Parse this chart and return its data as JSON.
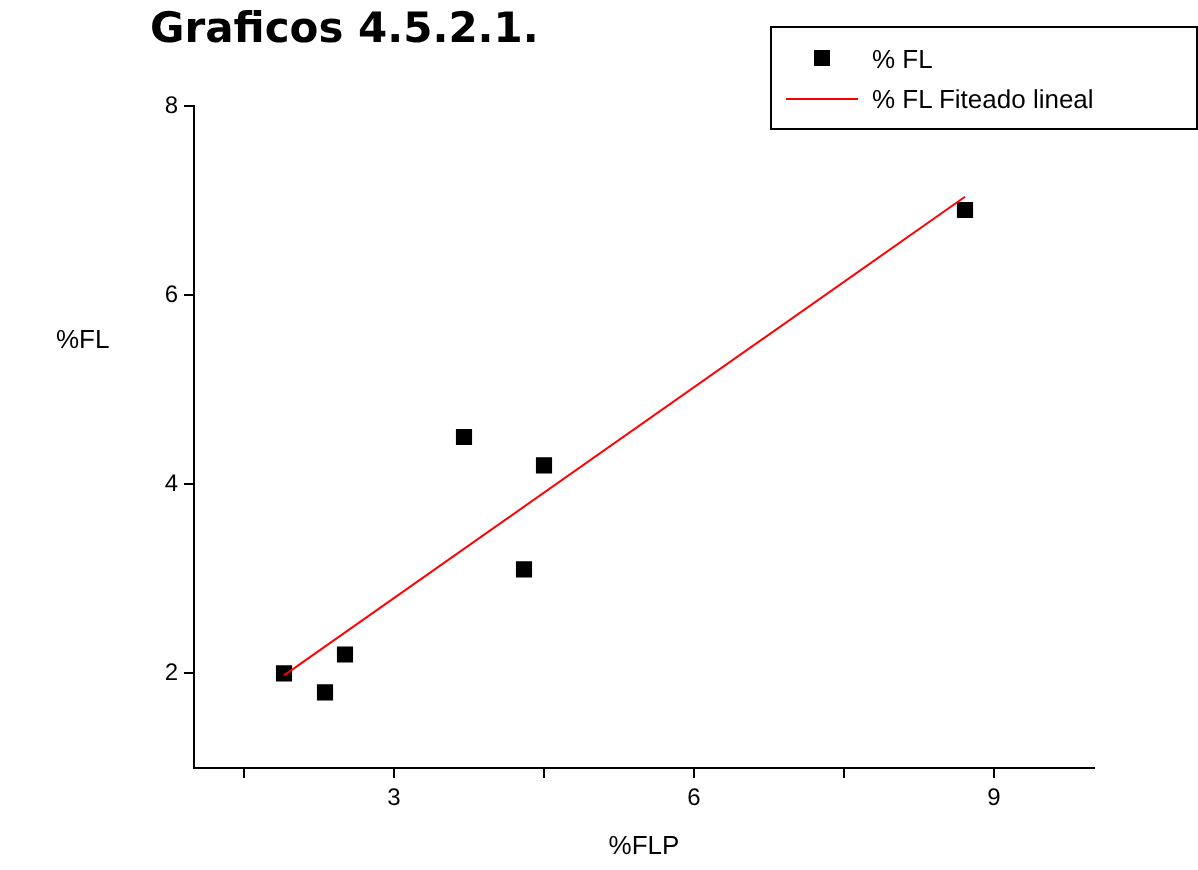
{
  "chart_data": {
    "type": "scatter",
    "title": "Graficos 4.5.2.1.",
    "xlabel": "%FLP",
    "ylabel": "%FL",
    "legend": "top right",
    "grid": false,
    "marker": "square",
    "xlim": [
      1,
      10
    ],
    "xticks": [
      {
        "value": 1.5,
        "label": null
      },
      3,
      {
        "value": 4.5,
        "label": null
      },
      6,
      {
        "value": 7.5,
        "label": null
      },
      9
    ],
    "ylim": [
      1,
      8
    ],
    "yticks": [
      2,
      4,
      6,
      8
    ],
    "series": [
      {
        "name": "% FL",
        "color": "#000000",
        "x": [
          1.9,
          2.31,
          2.51,
          3.7,
          4.3,
          4.5,
          8.71
        ],
        "values": [
          2,
          1.8,
          2.2,
          4.5,
          3.1,
          4.2,
          6.9
        ]
      },
      {
        "name": "% FL Fiteado lineal",
        "type": "line",
        "marker": "none",
        "line_style": "solid",
        "color": "#ff0000",
        "x": [
          1.9,
          8.71
        ],
        "values": [
          1.98,
          7.04
        ]
      }
    ]
  }
}
